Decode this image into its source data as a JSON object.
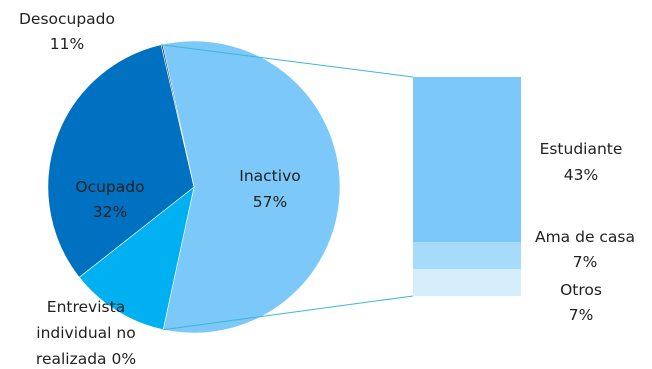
{
  "chart_data": {
    "type": "pie",
    "subtype": "bar-of-pie",
    "slices": [
      {
        "name": "Inactivo",
        "value": 57,
        "label": "57%",
        "color": "#7cc8f8"
      },
      {
        "name": "Desocupado",
        "value": 11,
        "label": "11%",
        "color": "#00b0f0"
      },
      {
        "name": "Ocupado",
        "value": 32,
        "label": "32%",
        "color": "#0070c0"
      },
      {
        "name": "Entrevista individual no realizada",
        "value": 0,
        "label": "0%",
        "color": "#003f7a"
      }
    ],
    "breakdown": {
      "of": "Inactivo",
      "segments": [
        {
          "name": "Estudiante",
          "value": 43,
          "label": "43%",
          "color": "#7cc8f8"
        },
        {
          "name": "Ama de casa",
          "value": 7,
          "label": "7%",
          "color": "#a6dcfa"
        },
        {
          "name": "Otros",
          "value": 7,
          "label": "7%",
          "color": "#d6eefc"
        }
      ]
    },
    "text": {
      "inactivo": "Inactivo",
      "inactivo_pct": "57%",
      "desocupado": "Desocupado",
      "desocupado_pct": "11%",
      "ocupado": "Ocupado",
      "ocupado_pct": "32%",
      "entrevista_l1": "Entrevista",
      "entrevista_l2": "individual no",
      "entrevista_l3": "realizada 0%",
      "estudiante": "Estudiante",
      "estudiante_pct": "43%",
      "ama": "Ama de casa",
      "ama_pct": "7%",
      "otros": "Otros",
      "otros_pct": "7%"
    },
    "connector_color": "#3fb6d8"
  }
}
